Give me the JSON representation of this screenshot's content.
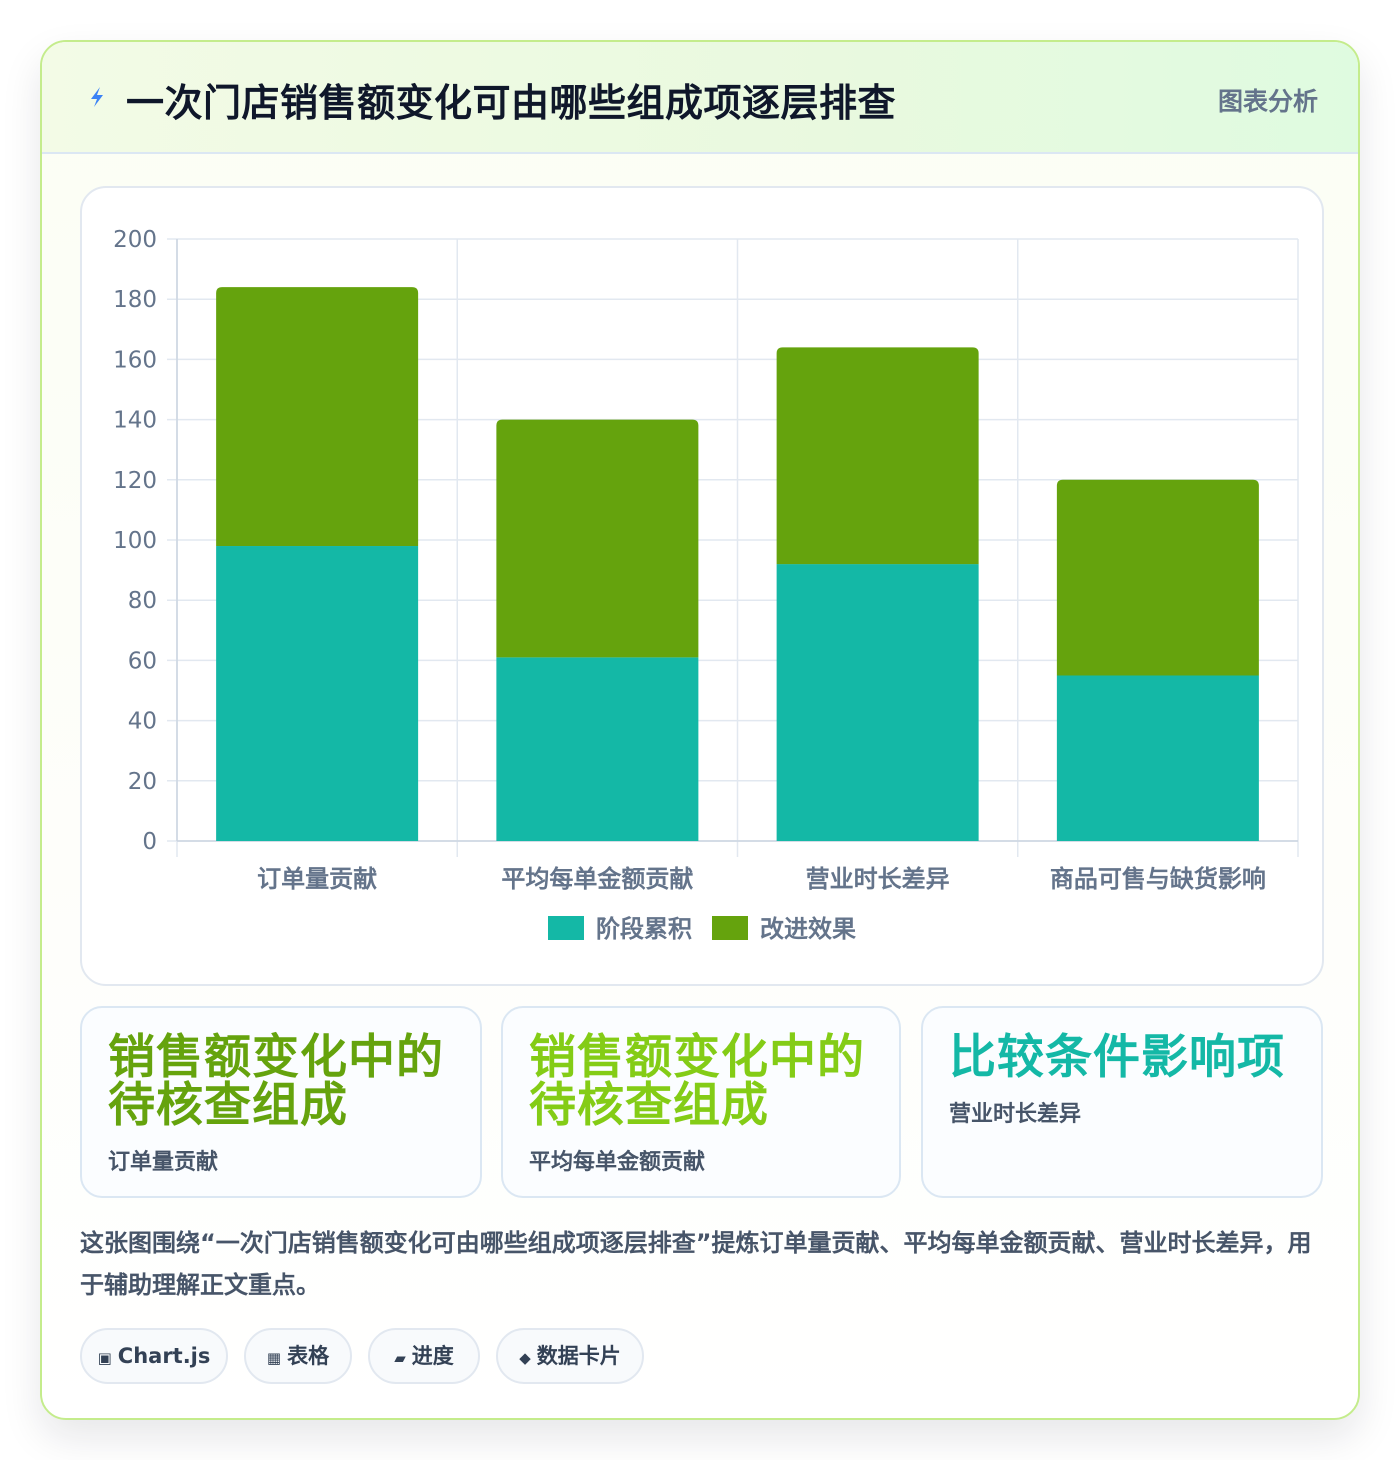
{
  "header": {
    "title": "一次门店销售额变化可由哪些组成项逐层排查",
    "tag": "图表分析",
    "icon": "lightning-icon"
  },
  "chart_data": {
    "type": "bar",
    "stacked": true,
    "categories": [
      "订单量贡献",
      "平均每单金额贡献",
      "营业时长差异",
      "商品可售与缺货影响"
    ],
    "series": [
      {
        "name": "阶段累积",
        "values": [
          98,
          61,
          92,
          55
        ],
        "color": "#14b8a6"
      },
      {
        "name": "改进效果",
        "values": [
          86,
          79,
          72,
          65
        ],
        "color": "#65a30d"
      }
    ],
    "ylim": [
      0,
      200
    ],
    "yticks": [
      0,
      20,
      40,
      60,
      80,
      100,
      120,
      140,
      160,
      180,
      200
    ],
    "grid": true,
    "legend_position": "bottom",
    "title": "",
    "xlabel": "",
    "ylabel": ""
  },
  "stats": [
    {
      "headline": "销售额变化中的待核查组成",
      "line1": "销售额变化中的",
      "line2": "待核查组成",
      "label": "订单量贡献",
      "color": "#65a30d"
    },
    {
      "headline": "销售额变化中的待核查组成",
      "line1": "销售额变化中的",
      "line2": "待核查组成",
      "label": "平均每单金额贡献",
      "color": "#84cc16"
    },
    {
      "headline": "比较条件影响项",
      "line1": "比较条件影响项",
      "line2": "",
      "label": "营业时长差异",
      "color": "#14b8a6"
    }
  ],
  "summary": "这张图围绕“一次门店销售额变化可由哪些组成项逐层排查”提炼订单量贡献、平均每单金额贡献、营业时长差异，用于辅助理解正文重点。",
  "chips": [
    {
      "icon": "▣",
      "label": "Chart.js"
    },
    {
      "icon": "▦",
      "label": "表格"
    },
    {
      "icon": "▰",
      "label": "进度"
    },
    {
      "icon": "◆",
      "label": "数据卡片"
    }
  ]
}
